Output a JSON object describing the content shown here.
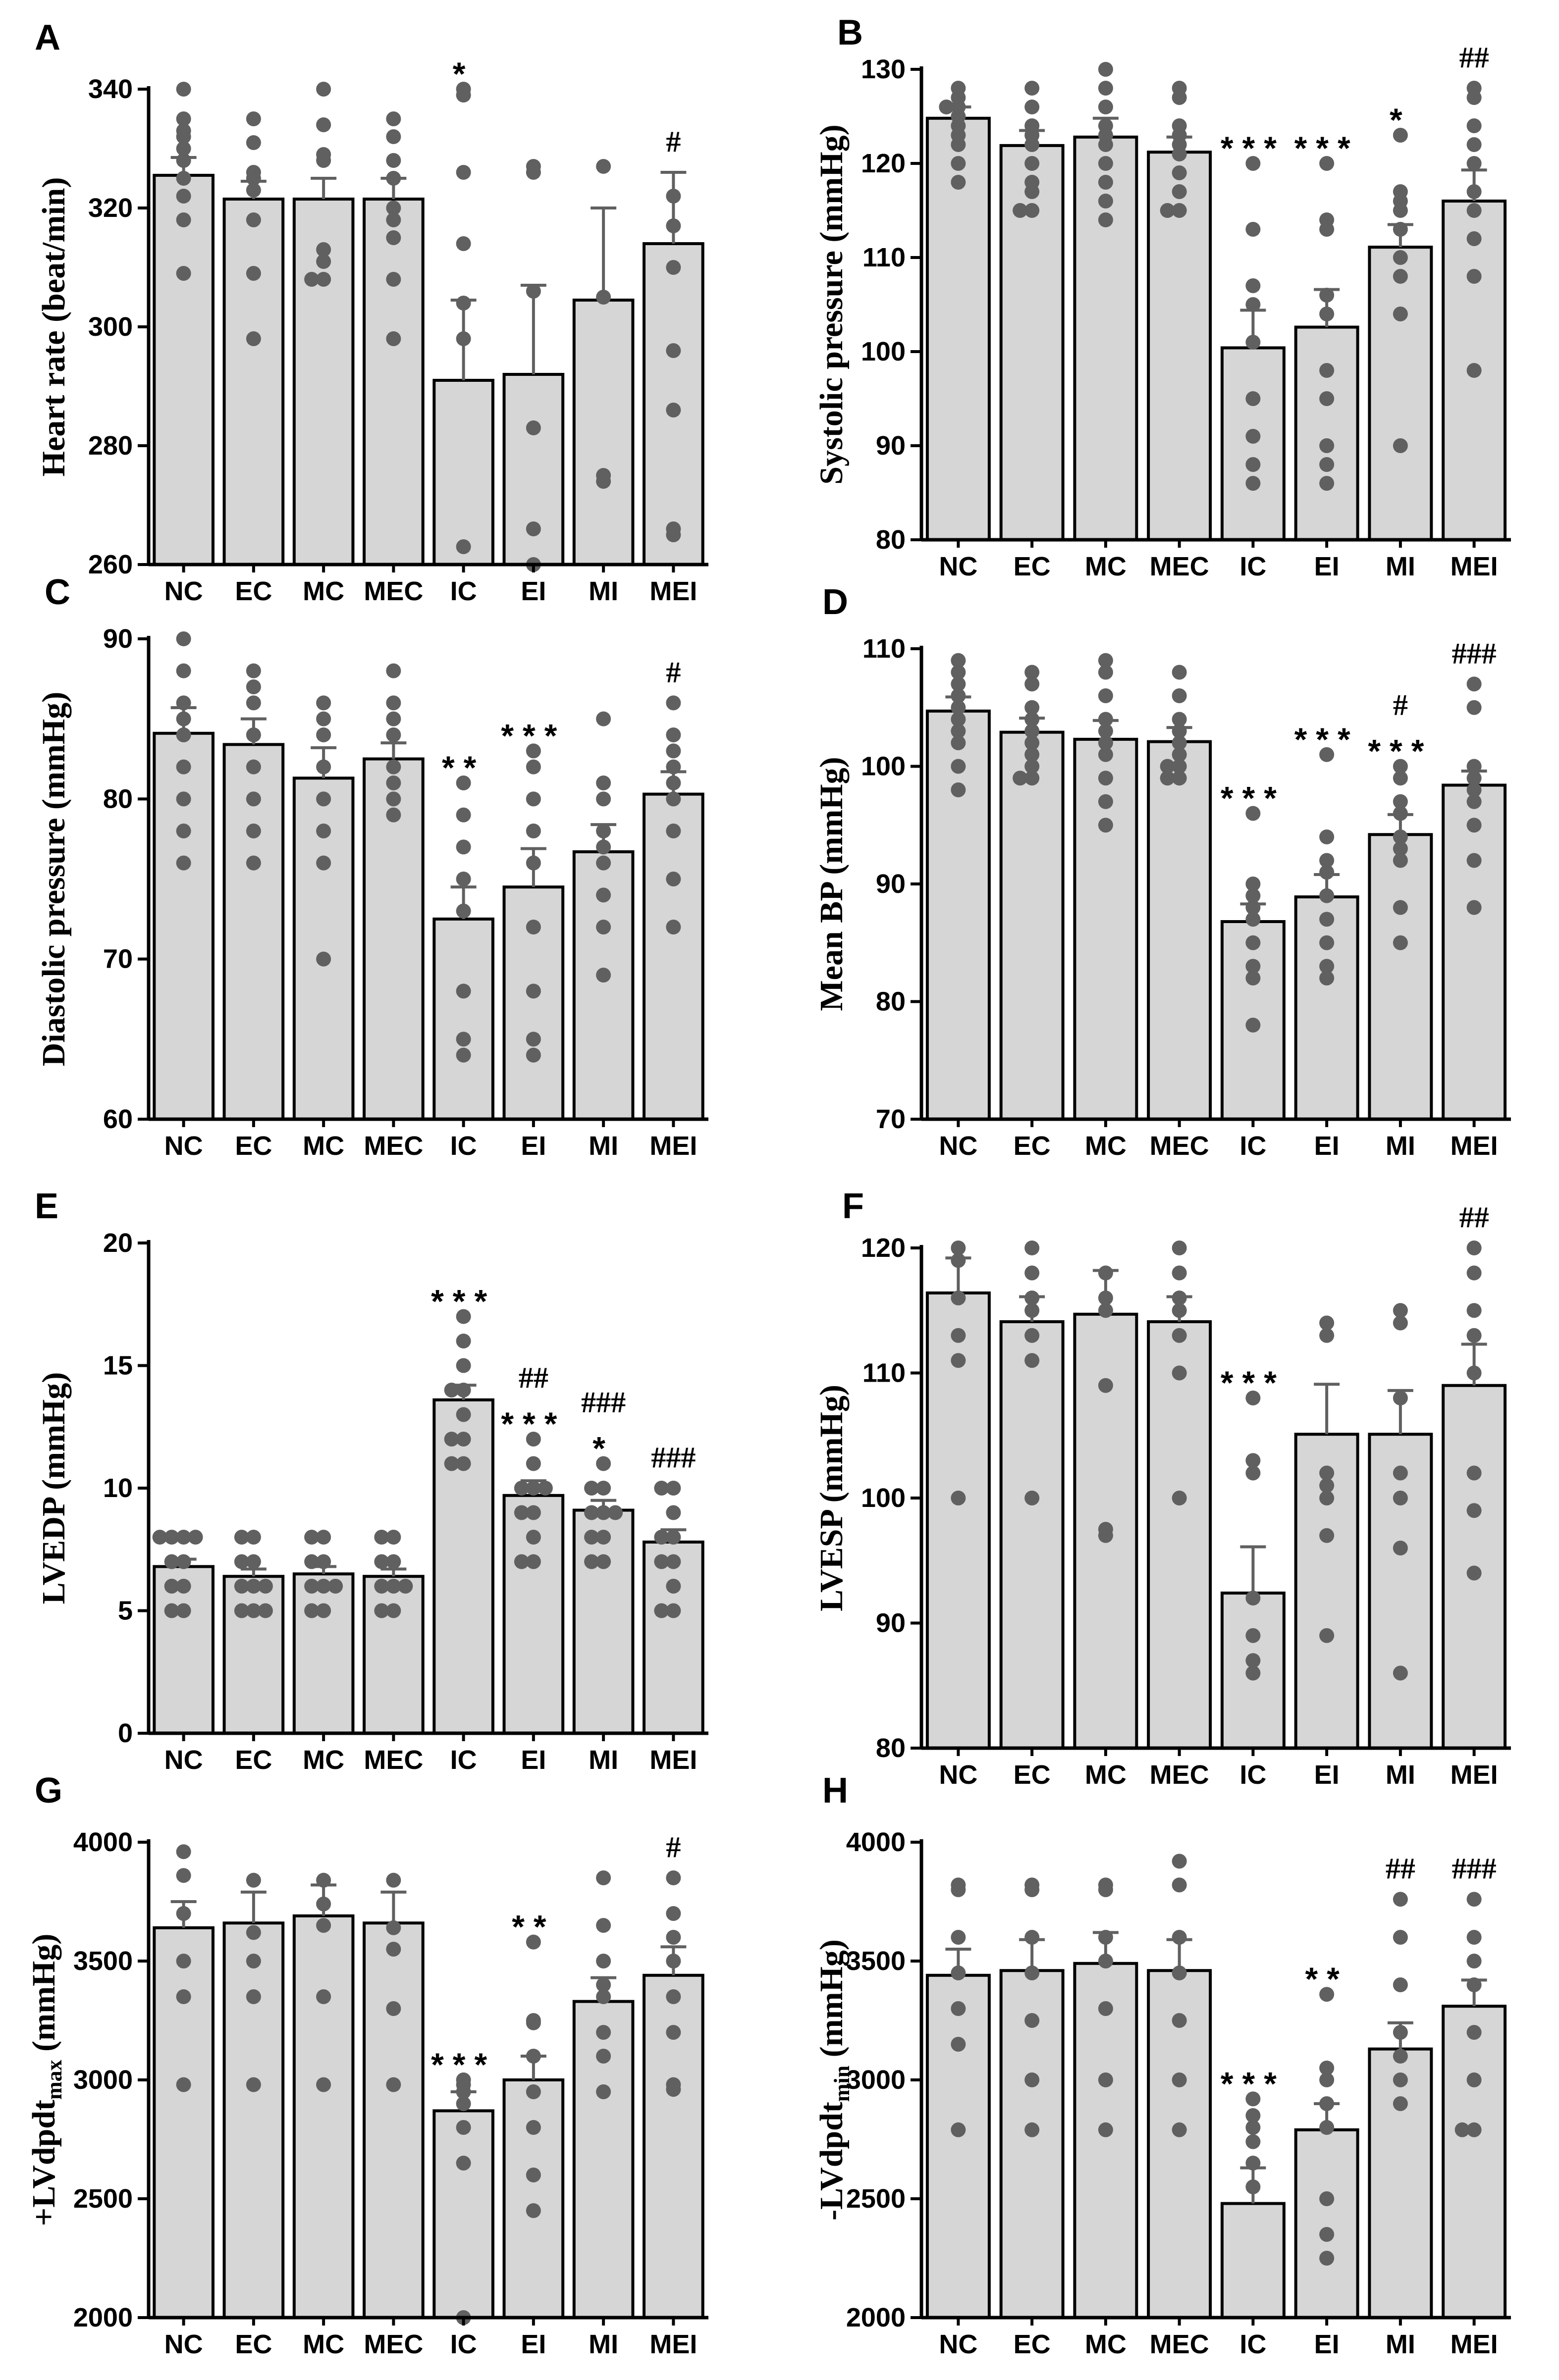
{
  "figure": {
    "categories": [
      "NC",
      "EC",
      "MC",
      "MEC",
      "IC",
      "EI",
      "MI",
      "MEI"
    ],
    "bar_color": "#d6d6d6",
    "dot_color": "#606060",
    "axis_color": "#000000"
  },
  "chart_data": [
    {
      "panel": "A",
      "type": "bar",
      "ylabel": "Heart rate (beat/min)",
      "ylim": [
        260,
        340
      ],
      "yticks": [
        260,
        280,
        300,
        320,
        340
      ],
      "categories": [
        "NC",
        "EC",
        "MC",
        "MEC",
        "IC",
        "EI",
        "MI",
        "MEI"
      ],
      "values": [
        325.5,
        321.5,
        321.5,
        321.5,
        291,
        292,
        304.5,
        314
      ],
      "errors": [
        3,
        3,
        3.5,
        3.5,
        13.5,
        15,
        15.5,
        12
      ],
      "points": [
        [
          340,
          335,
          333,
          332,
          330,
          328,
          325,
          322,
          318,
          309
        ],
        [
          335,
          331,
          326,
          325,
          323,
          318,
          309,
          298
        ],
        [
          340,
          334,
          329,
          328,
          313,
          311,
          308,
          308
        ],
        [
          335,
          332,
          328,
          325,
          320,
          318,
          315,
          308,
          298
        ],
        [
          340,
          339,
          326,
          314,
          304,
          298,
          263
        ],
        [
          327,
          326,
          306,
          283,
          266,
          260
        ],
        [
          327,
          305,
          275,
          274
        ],
        [
          322,
          317,
          310,
          296,
          286,
          266,
          265
        ]
      ],
      "annotations": [
        {
          "group": "IC",
          "lines": [
            "*"
          ]
        },
        {
          "group": "MEI",
          "lines": [
            "#"
          ]
        }
      ]
    },
    {
      "panel": "B",
      "type": "bar",
      "ylabel": "Systolic pressure (mmHg)",
      "ylim": [
        80,
        130
      ],
      "yticks": [
        80,
        90,
        100,
        110,
        120,
        130
      ],
      "categories": [
        "NC",
        "EC",
        "MC",
        "MEC",
        "IC",
        "EI",
        "MI",
        "MEI"
      ],
      "values": [
        124.8,
        121.9,
        122.8,
        121.2,
        100.4,
        102.6,
        111.1,
        116
      ],
      "errors": [
        1.2,
        1.6,
        2,
        1.6,
        4,
        4,
        2.4,
        3.3
      ],
      "points": [
        [
          128,
          127,
          126,
          126,
          125,
          124,
          123,
          122,
          120,
          118
        ],
        [
          128,
          126,
          124,
          123,
          122,
          120,
          118,
          117,
          115,
          115
        ],
        [
          130,
          128,
          126,
          124,
          123,
          122,
          120,
          118,
          116,
          114
        ],
        [
          128,
          127,
          124,
          123,
          122,
          121,
          119,
          117,
          115,
          115
        ],
        [
          120,
          113,
          107,
          105,
          101,
          95,
          91,
          88,
          86
        ],
        [
          120,
          114,
          113,
          106,
          104,
          98,
          95,
          90,
          88,
          86
        ],
        [
          123,
          117,
          116,
          115,
          113,
          110,
          108,
          104,
          90
        ],
        [
          128,
          127,
          124,
          122,
          120,
          117,
          115,
          112,
          108,
          98
        ]
      ],
      "annotations": [
        {
          "group": "IC",
          "lines": [
            "***"
          ]
        },
        {
          "group": "EI",
          "lines": [
            "***"
          ]
        },
        {
          "group": "MI",
          "lines": [
            "*"
          ]
        },
        {
          "group": "MEI",
          "lines": [
            "##"
          ]
        }
      ]
    },
    {
      "panel": "C",
      "type": "bar",
      "ylabel": "Diastolic pressure (mmHg)",
      "ylim": [
        60,
        90
      ],
      "yticks": [
        60,
        70,
        80,
        90
      ],
      "categories": [
        "NC",
        "EC",
        "MC",
        "MEC",
        "IC",
        "EI",
        "MI",
        "MEI"
      ],
      "values": [
        84.1,
        83.4,
        81.3,
        82.5,
        72.5,
        74.5,
        76.7,
        80.3
      ],
      "errors": [
        1.6,
        1.6,
        1.9,
        1,
        2,
        2.4,
        1.7,
        1.4
      ],
      "points": [
        [
          90,
          88,
          86,
          85,
          84,
          82,
          80,
          78,
          76
        ],
        [
          88,
          87,
          86,
          84,
          82,
          80,
          78,
          76
        ],
        [
          86,
          85,
          84,
          82,
          80,
          78,
          76,
          70
        ],
        [
          88,
          86,
          85,
          84,
          82,
          81,
          80,
          79
        ],
        [
          81,
          79,
          77,
          75,
          73,
          68,
          65,
          64
        ],
        [
          83,
          82,
          80,
          78,
          76,
          72,
          68,
          65,
          64
        ],
        [
          85,
          81,
          80,
          78,
          77,
          76,
          74,
          72,
          69
        ],
        [
          86,
          84,
          83,
          82,
          81,
          80,
          78,
          75,
          72
        ]
      ],
      "annotations": [
        {
          "group": "IC",
          "lines": [
            "**"
          ]
        },
        {
          "group": "EI",
          "lines": [
            "***"
          ]
        },
        {
          "group": "MEI",
          "lines": [
            "#"
          ]
        }
      ]
    },
    {
      "panel": "D",
      "type": "bar",
      "ylabel": "Mean BP (mmHg)",
      "ylim": [
        70,
        110
      ],
      "yticks": [
        70,
        80,
        90,
        100,
        110
      ],
      "categories": [
        "NC",
        "EC",
        "MC",
        "MEC",
        "IC",
        "EI",
        "MI",
        "MEI"
      ],
      "values": [
        104.7,
        102.9,
        102.3,
        102.1,
        86.8,
        88.9,
        94.2,
        98.4
      ],
      "errors": [
        1.2,
        1.2,
        1.6,
        1.2,
        1.5,
        1.9,
        1.7,
        1.2
      ],
      "points": [
        [
          109,
          108,
          107,
          106,
          105,
          104,
          103,
          102,
          100,
          98
        ],
        [
          108,
          107,
          105,
          104,
          103,
          102,
          101,
          100,
          99,
          99
        ],
        [
          109,
          108,
          106,
          104,
          103,
          102,
          101,
          99,
          97,
          95
        ],
        [
          108,
          106,
          104,
          103,
          102,
          101,
          100,
          100,
          99,
          99
        ],
        [
          96,
          90,
          89,
          88,
          87,
          85,
          83,
          82,
          78
        ],
        [
          101,
          94,
          92,
          91,
          89,
          87,
          85,
          83,
          82
        ],
        [
          100,
          99,
          97,
          96,
          94,
          93,
          92,
          88,
          85
        ],
        [
          107,
          105,
          100,
          99,
          98,
          97,
          95,
          92,
          88
        ]
      ],
      "annotations": [
        {
          "group": "IC",
          "lines": [
            "***"
          ]
        },
        {
          "group": "EI",
          "lines": [
            "***"
          ]
        },
        {
          "group": "MI",
          "lines": [
            "#",
            "***"
          ]
        },
        {
          "group": "MEI",
          "lines": [
            "###"
          ]
        }
      ]
    },
    {
      "panel": "E",
      "type": "bar",
      "ylabel": "LVEDP (mmHg)",
      "ylim": [
        0,
        20
      ],
      "yticks": [
        0,
        5,
        10,
        15,
        20
      ],
      "categories": [
        "NC",
        "EC",
        "MC",
        "MEC",
        "IC",
        "EI",
        "MI",
        "MEI"
      ],
      "values": [
        6.8,
        6.4,
        6.5,
        6.4,
        13.6,
        9.7,
        9.1,
        7.8
      ],
      "errors": [
        0.3,
        0.3,
        0.3,
        0.3,
        0.6,
        0.6,
        0.4,
        0.5
      ],
      "points": [
        [
          8,
          8,
          8,
          8,
          7,
          7,
          6,
          6,
          5,
          5
        ],
        [
          8,
          8,
          7,
          7,
          6,
          6,
          6,
          5,
          5,
          5
        ],
        [
          8,
          8,
          7,
          7,
          6,
          6,
          6,
          5,
          5
        ],
        [
          8,
          8,
          7,
          7,
          6,
          6,
          6,
          5,
          5
        ],
        [
          17,
          16,
          15,
          14,
          14,
          13,
          12,
          12,
          11,
          11
        ],
        [
          12,
          11,
          10,
          10,
          10,
          9,
          9,
          8,
          7,
          7
        ],
        [
          11,
          10,
          10,
          9,
          9,
          9,
          8,
          8,
          7,
          7
        ],
        [
          10,
          10,
          9,
          8,
          8,
          7,
          7,
          6,
          5,
          5
        ]
      ],
      "annotations": [
        {
          "group": "IC",
          "lines": [
            "***"
          ]
        },
        {
          "group": "EI",
          "lines": [
            "##",
            "***"
          ]
        },
        {
          "group": "MI",
          "lines": [
            "###",
            "*"
          ]
        },
        {
          "group": "MEI",
          "lines": [
            "###"
          ]
        }
      ]
    },
    {
      "panel": "F",
      "type": "bar",
      "ylabel": "LVESP (mmHg)",
      "ylim": [
        80,
        120
      ],
      "yticks": [
        80,
        90,
        100,
        110,
        120
      ],
      "categories": [
        "NC",
        "EC",
        "MC",
        "MEC",
        "IC",
        "EI",
        "MI",
        "MEI"
      ],
      "values": [
        116.4,
        114.1,
        114.7,
        114.1,
        92.4,
        105.1,
        105.1,
        109
      ],
      "errors": [
        2.8,
        2,
        3.5,
        2,
        3.7,
        4,
        3.5,
        3.3
      ],
      "points": [
        [
          120,
          119,
          116,
          113,
          111,
          100
        ],
        [
          120,
          118,
          116,
          115,
          113,
          111,
          100
        ],
        [
          118,
          116,
          115,
          109,
          97.5,
          97
        ],
        [
          120,
          118,
          116,
          115,
          113,
          110,
          100
        ],
        [
          108,
          103,
          102,
          92,
          89,
          87,
          86
        ],
        [
          114,
          113,
          102,
          101,
          100,
          97,
          89
        ],
        [
          115,
          114,
          108,
          102,
          100,
          96,
          86
        ],
        [
          120,
          118,
          115,
          113,
          110,
          102,
          99,
          94
        ]
      ],
      "annotations": [
        {
          "group": "IC",
          "lines": [
            "***"
          ]
        },
        {
          "group": "MEI",
          "lines": [
            "##"
          ]
        }
      ]
    },
    {
      "panel": "G",
      "type": "bar",
      "ylabel": "+LVdpdt",
      "ylabel_subscript": "max",
      "ylabel_suffix": " (mmHg)",
      "ylim": [
        2000,
        4000
      ],
      "yticks": [
        2000,
        2500,
        3000,
        3500,
        4000
      ],
      "categories": [
        "NC",
        "EC",
        "MC",
        "MEC",
        "IC",
        "EI",
        "MI",
        "MEI"
      ],
      "values": [
        3640,
        3660,
        3690,
        3660,
        2870,
        3000,
        3330,
        3440
      ],
      "errors": [
        110,
        130,
        130,
        130,
        80,
        100,
        100,
        120
      ],
      "points": [
        [
          3960,
          3860,
          3700,
          3500,
          3350,
          2980
        ],
        [
          3840,
          3620,
          3500,
          3350,
          2980
        ],
        [
          3840,
          3740,
          3650,
          3350,
          2980
        ],
        [
          3840,
          3640,
          3550,
          3300,
          2980
        ],
        [
          3000,
          2980,
          2950,
          2900,
          2800,
          2650,
          2000
        ],
        [
          3580,
          3250,
          3240,
          3100,
          2950,
          2800,
          2600,
          2450
        ],
        [
          3850,
          3650,
          3500,
          3400,
          3350,
          3200,
          3100,
          2950
        ],
        [
          3850,
          3700,
          3600,
          3500,
          3350,
          3200,
          2980,
          2960
        ]
      ],
      "annotations": [
        {
          "group": "IC",
          "lines": [
            "***"
          ]
        },
        {
          "group": "EI",
          "lines": [
            "**"
          ]
        },
        {
          "group": "MEI",
          "lines": [
            "#"
          ]
        }
      ]
    },
    {
      "panel": "H",
      "type": "bar",
      "ylabel": "-LVdpdt",
      "ylabel_subscript": "min",
      "ylabel_suffix": " (mmHg)",
      "ylim": [
        2000,
        4000
      ],
      "yticks": [
        2000,
        2500,
        3000,
        3500,
        4000
      ],
      "categories": [
        "NC",
        "EC",
        "MC",
        "MEC",
        "IC",
        "EI",
        "MI",
        "MEI"
      ],
      "values": [
        3440,
        3460,
        3490,
        3460,
        2480,
        2790,
        3130,
        3310
      ],
      "errors": [
        110,
        130,
        130,
        130,
        150,
        110,
        110,
        110
      ],
      "points": [
        [
          3820,
          3800,
          3600,
          3450,
          3300,
          3150,
          2790
        ],
        [
          3820,
          3800,
          3600,
          3450,
          3250,
          3000,
          2790
        ],
        [
          3820,
          3800,
          3600,
          3500,
          3300,
          3000,
          2790
        ],
        [
          3920,
          3820,
          3600,
          3450,
          3250,
          3000,
          2790
        ],
        [
          2920,
          2850,
          2800,
          2740,
          2650,
          2550
        ],
        [
          3360,
          3050,
          3000,
          2900,
          2800,
          2500,
          2350,
          2250
        ],
        [
          3760,
          3600,
          3400,
          3200,
          3100,
          3000,
          2900
        ],
        [
          3760,
          3600,
          3500,
          3400,
          3200,
          3000,
          2790,
          2790
        ]
      ],
      "annotations": [
        {
          "group": "IC",
          "lines": [
            "***"
          ]
        },
        {
          "group": "EI",
          "lines": [
            "**"
          ]
        },
        {
          "group": "MI",
          "lines": [
            "##"
          ]
        },
        {
          "group": "MEI",
          "lines": [
            "###"
          ]
        }
      ]
    }
  ]
}
